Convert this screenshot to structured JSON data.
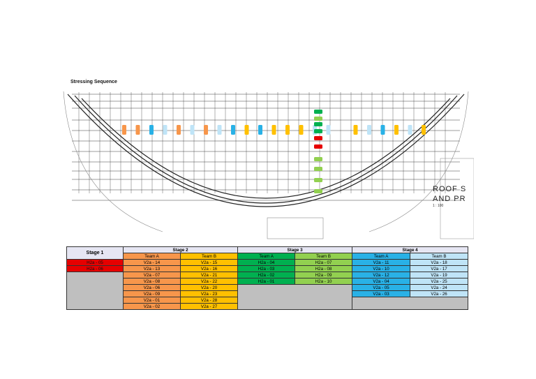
{
  "title": "Stressing Sequence",
  "drawing": {
    "roof_label_line1": "ROOF S",
    "roof_label_line2": "AND PR",
    "roof_scale": "1 : 100",
    "colors": {
      "line": "#3a3a3a",
      "stage1": "#e60000",
      "stage2_team_a": "#f7964b",
      "stage2_team_b": "#ffc000",
      "stage3_team_a": "#00b050",
      "stage3_team_b": "#92d050",
      "stage4_team_a": "#29b1e6",
      "stage4_team_b": "#bfe4f7"
    }
  },
  "table": {
    "stage1": {
      "label": "Stage 1",
      "rows": [
        "H2a - 05",
        "H2a - 06"
      ],
      "color": "#e60000"
    },
    "stage2": {
      "label": "Stage 2",
      "team_a": {
        "label": "Team A",
        "rows": [
          "V2a - 14",
          "V2a - 13",
          "V2a - 07",
          "V2a - 08",
          "V2a - 06",
          "V2a - 09",
          "V2a - 01",
          "V2a - 02"
        ],
        "color": "#f7964b"
      },
      "team_b": {
        "label": "Team B",
        "rows": [
          "V2a - 15",
          "V2a - 16",
          "V2a - 21",
          "V2a - 22",
          "V2a - 20",
          "V2a - 23",
          "V2a - 28",
          "V2a - 27"
        ],
        "color": "#ffc000"
      }
    },
    "stage3": {
      "label": "Stage 3",
      "team_a": {
        "label": "Team A",
        "rows": [
          "H2a - 04",
          "H2a - 03",
          "H2a - 02",
          "H2a - 01"
        ],
        "color": "#00b050"
      },
      "team_b": {
        "label": "Team B",
        "rows": [
          "H2a - 07",
          "H2a - 08",
          "H2a - 09",
          "H2a - 10"
        ],
        "color": "#92d050"
      }
    },
    "stage4": {
      "label": "Stage 4",
      "team_a": {
        "label": "Team A",
        "rows": [
          "V2a - 11",
          "V2a - 10",
          "V2a - 12",
          "V2a - 04",
          "V2a - 05",
          "V2a - 03"
        ],
        "color": "#29b1e6"
      },
      "team_b": {
        "label": "Team B",
        "rows": [
          "V2a - 18",
          "V2a - 17",
          "V2a - 19",
          "V2a - 25",
          "V2a - 24",
          "V2a - 26"
        ],
        "color": "#bfe4f7"
      }
    },
    "empty_fill": "#bfbfbf"
  }
}
